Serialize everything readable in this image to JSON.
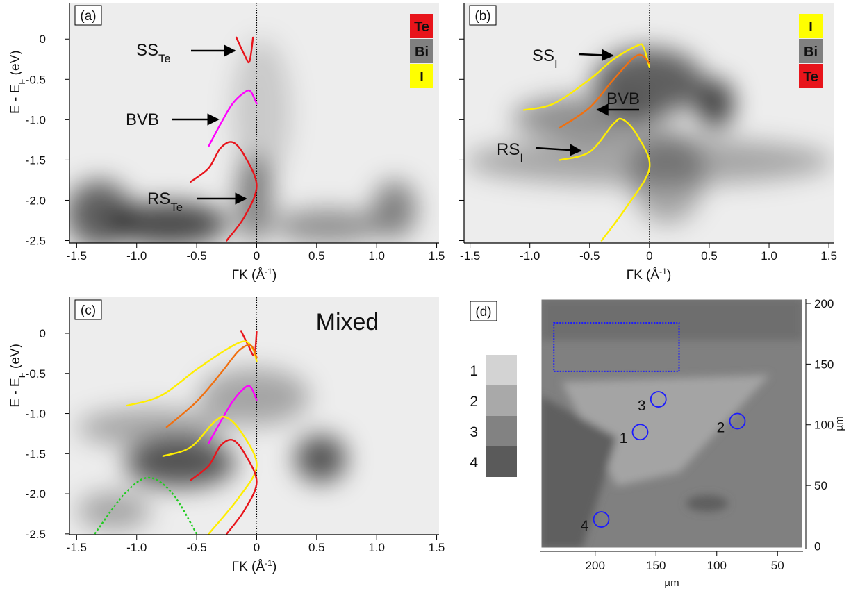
{
  "chart_data": [
    {
      "type": "heatmap",
      "label": "(a)",
      "xlim": [
        -1.56,
        1.52
      ],
      "ylim": [
        -2.53,
        0.45
      ],
      "xticks": [
        -1.5,
        {
          "value": -1,
          "label": "-1.0"
        },
        -0.5,
        0,
        0.5,
        {
          "value": 1,
          "label": "1.0"
        },
        1.5
      ],
      "yticks": [
        0,
        -0.5,
        {
          "value": -1,
          "label": "-1.0"
        },
        -1.5,
        {
          "value": -2,
          "label": "-2.0"
        },
        -2.5
      ],
      "ytick_labels": true,
      "xlabel": {
        "text": "ΓK (Å",
        "sup": "-1",
        "suffix": ")"
      },
      "ylabel": {
        "text": "E - E",
        "sub": "F",
        "suffix": " (eV)"
      },
      "vline": 0,
      "legend": [
        {
          "label": "Te",
          "color": "#e8141b"
        },
        {
          "label": "Bi",
          "color": "#808080"
        },
        {
          "label": "I",
          "color": "#ffff00"
        }
      ],
      "annotations": [
        {
          "text": "SS",
          "sub": "Te"
        },
        {
          "text": "BVB"
        },
        {
          "text": "RS",
          "sub": "Te"
        }
      ],
      "series": [
        {
          "color": "#e8141b",
          "x": [
            -0.17,
            -0.1,
            -0.06,
            -0.03
          ],
          "values": [
            0.02,
            -0.2,
            -0.28,
            0.02
          ]
        },
        {
          "color": "#ff00ff",
          "x": [
            -0.4,
            -0.3,
            -0.2,
            -0.1,
            -0.05,
            0
          ],
          "values": [
            -1.33,
            -1.05,
            -0.8,
            -0.66,
            -0.65,
            -0.8
          ]
        },
        {
          "color": "#e8141b",
          "x": [
            -0.55,
            -0.4,
            -0.3,
            -0.2,
            -0.1,
            0,
            -0.1,
            -0.25
          ],
          "values": [
            -1.77,
            -1.6,
            -1.35,
            -1.28,
            -1.45,
            -1.82,
            -2.2,
            -2.5
          ]
        }
      ]
    },
    {
      "type": "heatmap",
      "label": "(b)",
      "xlim": [
        -1.55,
        1.54
      ],
      "ylim": [
        -2.53,
        0.45
      ],
      "xticks": [
        -1.5,
        {
          "value": -1,
          "label": "-1.0"
        },
        -0.5,
        0,
        0.5,
        {
          "value": 1,
          "label": "1.0"
        },
        1.5
      ],
      "yticks": [
        0,
        -0.5,
        -1,
        -1.5,
        -2,
        -2.5
      ],
      "ytick_labels": false,
      "xlabel": {
        "text": "ΓK (Å",
        "sup": "-1",
        "suffix": ")"
      },
      "vline": 0,
      "legend": [
        {
          "label": "I",
          "color": "#ffff00"
        },
        {
          "label": "Bi",
          "color": "#808080"
        },
        {
          "label": "Te",
          "color": "#e8141b"
        }
      ],
      "annotations": [
        {
          "text": "SS",
          "sub": "I"
        },
        {
          "text": "BVB"
        },
        {
          "text": "RS",
          "sub": "I"
        }
      ],
      "series": [
        {
          "color": "#ffee00",
          "x": [
            -1.05,
            -0.8,
            -0.5,
            -0.3,
            -0.1,
            -0.05,
            0
          ],
          "values": [
            -0.88,
            -0.8,
            -0.5,
            -0.25,
            -0.08,
            -0.1,
            -0.35
          ]
        },
        {
          "color": "#f07010",
          "x": [
            -0.75,
            -0.5,
            -0.3,
            -0.1,
            0
          ],
          "values": [
            -1.1,
            -0.85,
            -0.5,
            -0.2,
            -0.3
          ]
        },
        {
          "color": "#ffee00",
          "x": [
            -0.75,
            -0.5,
            -0.3,
            -0.22,
            -0.1,
            0,
            -0.2,
            -0.4
          ],
          "values": [
            -1.5,
            -1.4,
            -1.05,
            -1.0,
            -1.2,
            -1.6,
            -2.1,
            -2.5
          ]
        }
      ]
    },
    {
      "type": "heatmap",
      "label": "(c)",
      "title": "Mixed",
      "xlim": [
        -1.56,
        1.52
      ],
      "ylim": [
        -2.51,
        0.45
      ],
      "xticks": [
        -1.5,
        {
          "value": -1,
          "label": "-1.0"
        },
        -0.5,
        0,
        0.5,
        {
          "value": 1,
          "label": "1.0"
        },
        1.5
      ],
      "yticks": [
        0,
        -0.5,
        {
          "value": -1,
          "label": "-1.0"
        },
        -1.5,
        {
          "value": -2,
          "label": "-2.0"
        },
        -2.5
      ],
      "ytick_labels": true,
      "xlabel": {
        "text": "ΓK (Å",
        "sup": "-1",
        "suffix": ")"
      },
      "ylabel": {
        "text": "E - E",
        "sub": "F",
        "suffix": " (eV)"
      },
      "vline": 0,
      "series": [
        {
          "color": "#e8141b",
          "x": [
            -0.13,
            -0.07,
            -0.02,
            0.0
          ],
          "values": [
            0.03,
            -0.15,
            -0.27,
            0.02
          ]
        },
        {
          "color": "#ffee00",
          "x": [
            -1.08,
            -0.8,
            -0.5,
            -0.25,
            -0.1,
            -0.03,
            0
          ],
          "values": [
            -0.9,
            -0.78,
            -0.45,
            -0.2,
            -0.1,
            -0.2,
            -0.35
          ]
        },
        {
          "color": "#f07010",
          "x": [
            -0.75,
            -0.5,
            -0.3,
            -0.15,
            -0.05,
            0
          ],
          "values": [
            -1.17,
            -0.85,
            -0.5,
            -0.22,
            -0.15,
            -0.3
          ]
        },
        {
          "color": "#ff00ff",
          "x": [
            -0.4,
            -0.3,
            -0.2,
            -0.1,
            -0.05,
            0
          ],
          "values": [
            -1.37,
            -1.1,
            -0.85,
            -0.68,
            -0.67,
            -0.83
          ]
        },
        {
          "color": "#ffee00",
          "x": [
            -0.78,
            -0.55,
            -0.35,
            -0.25,
            -0.12,
            0,
            -0.15,
            -0.4
          ],
          "values": [
            -1.53,
            -1.42,
            -1.1,
            -1.05,
            -1.25,
            -1.65,
            -2.05,
            -2.5
          ]
        },
        {
          "color": "#e8141b",
          "x": [
            -0.55,
            -0.4,
            -0.3,
            -0.2,
            -0.1,
            0,
            -0.1,
            -0.25
          ],
          "values": [
            -1.83,
            -1.65,
            -1.4,
            -1.33,
            -1.5,
            -1.85,
            -2.2,
            -2.5
          ]
        },
        {
          "color": "#22cc22",
          "style": "dotted",
          "x": [
            -1.35,
            -1.1,
            -0.9,
            -0.7,
            -0.5
          ],
          "values": [
            -2.5,
            -2.0,
            -1.8,
            -2.0,
            -2.5
          ]
        }
      ]
    },
    {
      "type": "image",
      "label": "(d)",
      "xlim": [
        245,
        29
      ],
      "ylim": [
        -2,
        204
      ],
      "xticks": [
        200,
        150,
        100,
        50
      ],
      "yticks": [
        0,
        50,
        100,
        150,
        200
      ],
      "xlabel": "µm",
      "ylabel": "µm",
      "region": {
        "x": [
          234,
          131
        ],
        "y": [
          184,
          144
        ],
        "color": "#1a1aff"
      },
      "markers": [
        {
          "label": "1",
          "x": 163,
          "y": 94
        },
        {
          "label": "2",
          "x": 83,
          "y": 103
        },
        {
          "label": "3",
          "x": 148,
          "y": 121
        },
        {
          "label": "4",
          "x": 195,
          "y": 22
        }
      ],
      "marker_color": "#1a1aff",
      "legend": [
        {
          "label": "1",
          "color": "#d3d3d3"
        },
        {
          "label": "2",
          "color": "#a9a9a9"
        },
        {
          "label": "3",
          "color": "#828282"
        },
        {
          "label": "4",
          "color": "#5a5a5a"
        }
      ]
    }
  ]
}
